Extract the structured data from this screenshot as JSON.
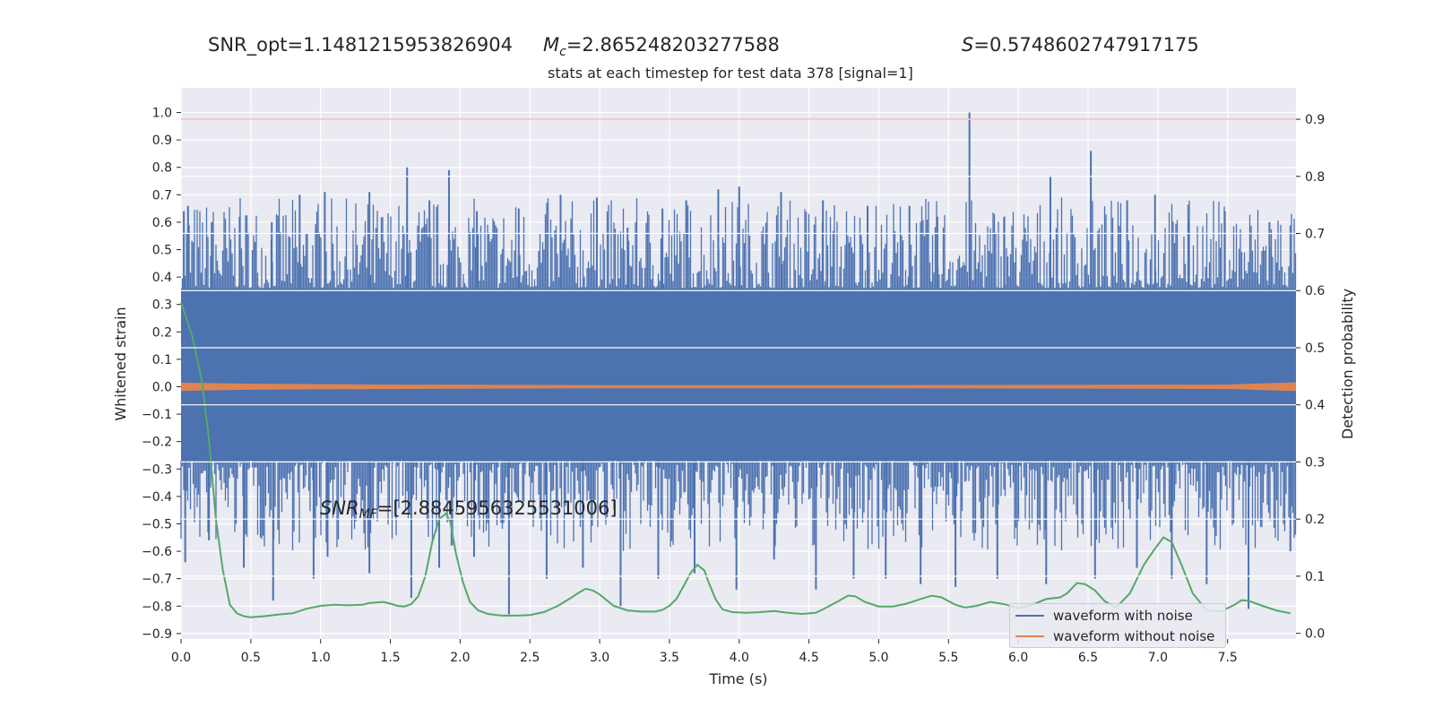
{
  "header": {
    "snr_opt_text": "SNR_opt=1.1481215953826904",
    "mc_value": "=2.865248203277588",
    "s_value": "=0.5748602747917175"
  },
  "chart_data": {
    "type": "line",
    "title": "stats at each timestep for test data 378 [signal=1]",
    "xlabel": "Time (s)",
    "ylabel": "Whitened strain",
    "ylabel_right": "Detection probability",
    "xlim": [
      0.0,
      7.99
    ],
    "ylim": [
      -0.92,
      1.09
    ],
    "ylim_right": [
      -0.01,
      0.955
    ],
    "x_ticks": [
      "0.0",
      "0.5",
      "1.0",
      "1.5",
      "2.0",
      "2.5",
      "3.0",
      "3.5",
      "4.0",
      "4.5",
      "5.0",
      "5.5",
      "6.0",
      "6.5",
      "7.0",
      "7.5"
    ],
    "y_ticks": [
      "1.0",
      "0.9",
      "0.8",
      "0.7",
      "0.6",
      "0.5",
      "0.4",
      "0.3",
      "0.2",
      "0.1",
      "0.0",
      "−0.1",
      "−0.2",
      "−0.3",
      "−0.4",
      "−0.5",
      "−0.6",
      "−0.7",
      "−0.8",
      "−0.9"
    ],
    "y_ticks_right": [
      "0.9",
      "0.8",
      "0.7",
      "0.6",
      "0.5",
      "0.4",
      "0.3",
      "0.2",
      "0.1",
      "0.0"
    ],
    "annotation": "=[2.8845956325531006]",
    "threshold_line": {
      "y": 0.9,
      "axis": "right",
      "color": "#d62728"
    },
    "grid": true,
    "legend_position": "lower-right",
    "series": [
      {
        "name": "waveform with noise",
        "color": "#4c72b0",
        "axis": "left",
        "noise_band": [
          -0.27,
          0.36
        ],
        "max_peaks": [
          {
            "x": 0.02,
            "y": 0.64
          },
          {
            "x": 0.05,
            "y": 0.66
          },
          {
            "x": 0.22,
            "y": 0.6
          },
          {
            "x": 0.42,
            "y": 0.62
          },
          {
            "x": 0.65,
            "y": 0.6
          },
          {
            "x": 0.85,
            "y": 0.7
          },
          {
            "x": 1.03,
            "y": 0.71
          },
          {
            "x": 1.35,
            "y": 0.71
          },
          {
            "x": 1.62,
            "y": 0.8
          },
          {
            "x": 1.78,
            "y": 0.68
          },
          {
            "x": 1.92,
            "y": 0.79
          },
          {
            "x": 2.12,
            "y": 0.64
          },
          {
            "x": 2.42,
            "y": 0.65
          },
          {
            "x": 2.72,
            "y": 0.7
          },
          {
            "x": 2.98,
            "y": 0.69
          },
          {
            "x": 3.2,
            "y": 0.58
          },
          {
            "x": 3.45,
            "y": 0.65
          },
          {
            "x": 3.62,
            "y": 0.68
          },
          {
            "x": 3.85,
            "y": 0.72
          },
          {
            "x": 4.0,
            "y": 0.73
          },
          {
            "x": 4.3,
            "y": 0.71
          },
          {
            "x": 4.6,
            "y": 0.68
          },
          {
            "x": 4.92,
            "y": 0.66
          },
          {
            "x": 5.22,
            "y": 0.66
          },
          {
            "x": 5.42,
            "y": 0.62
          },
          {
            "x": 5.65,
            "y": 1.0
          },
          {
            "x": 5.9,
            "y": 0.62
          },
          {
            "x": 6.23,
            "y": 0.77
          },
          {
            "x": 6.52,
            "y": 0.86
          },
          {
            "x": 6.78,
            "y": 0.68
          },
          {
            "x": 6.98,
            "y": 0.7
          },
          {
            "x": 7.22,
            "y": 0.6
          },
          {
            "x": 7.48,
            "y": 0.64
          },
          {
            "x": 7.8,
            "y": 0.6
          }
        ],
        "min_peaks": [
          {
            "x": 0.03,
            "y": -0.64
          },
          {
            "x": 0.2,
            "y": -0.56
          },
          {
            "x": 0.45,
            "y": -0.66
          },
          {
            "x": 0.66,
            "y": -0.78
          },
          {
            "x": 0.95,
            "y": -0.7
          },
          {
            "x": 1.05,
            "y": -0.62
          },
          {
            "x": 1.35,
            "y": -0.68
          },
          {
            "x": 1.65,
            "y": -0.77
          },
          {
            "x": 1.85,
            "y": -0.66
          },
          {
            "x": 2.1,
            "y": -0.62
          },
          {
            "x": 2.35,
            "y": -0.83
          },
          {
            "x": 2.62,
            "y": -0.7
          },
          {
            "x": 2.88,
            "y": -0.66
          },
          {
            "x": 3.15,
            "y": -0.8
          },
          {
            "x": 3.42,
            "y": -0.7
          },
          {
            "x": 3.68,
            "y": -0.68
          },
          {
            "x": 3.98,
            "y": -0.74
          },
          {
            "x": 4.25,
            "y": -0.63
          },
          {
            "x": 4.55,
            "y": -0.74
          },
          {
            "x": 4.82,
            "y": -0.7
          },
          {
            "x": 5.05,
            "y": -0.7
          },
          {
            "x": 5.3,
            "y": -0.72
          },
          {
            "x": 5.55,
            "y": -0.73
          },
          {
            "x": 5.85,
            "y": -0.7
          },
          {
            "x": 6.2,
            "y": -0.72
          },
          {
            "x": 6.55,
            "y": -0.7
          },
          {
            "x": 6.85,
            "y": -0.66
          },
          {
            "x": 7.1,
            "y": -0.7
          },
          {
            "x": 7.35,
            "y": -0.72
          },
          {
            "x": 7.65,
            "y": -0.81
          },
          {
            "x": 7.95,
            "y": -0.6
          }
        ]
      },
      {
        "name": "waveform without noise",
        "color": "#dd8452",
        "axis": "left",
        "envelope": [
          {
            "x": 0.0,
            "y": 0.015
          },
          {
            "x": 0.5,
            "y": 0.011
          },
          {
            "x": 1.5,
            "y": 0.008
          },
          {
            "x": 3.0,
            "y": 0.006
          },
          {
            "x": 5.0,
            "y": 0.006
          },
          {
            "x": 6.5,
            "y": 0.007
          },
          {
            "x": 7.5,
            "y": 0.008
          },
          {
            "x": 7.8,
            "y": 0.013
          },
          {
            "x": 7.99,
            "y": 0.016
          }
        ]
      },
      {
        "name": "detection probability",
        "color": "#55a868",
        "axis": "right",
        "points": [
          [
            0.0,
            0.58
          ],
          [
            0.08,
            0.52
          ],
          [
            0.15,
            0.44
          ],
          [
            0.2,
            0.34
          ],
          [
            0.25,
            0.2
          ],
          [
            0.3,
            0.11
          ],
          [
            0.35,
            0.05
          ],
          [
            0.4,
            0.035
          ],
          [
            0.45,
            0.03
          ],
          [
            0.5,
            0.028
          ],
          [
            0.6,
            0.03
          ],
          [
            0.7,
            0.033
          ],
          [
            0.8,
            0.035
          ],
          [
            0.9,
            0.043
          ],
          [
            1.0,
            0.048
          ],
          [
            1.1,
            0.05
          ],
          [
            1.2,
            0.049
          ],
          [
            1.3,
            0.05
          ],
          [
            1.35,
            0.053
          ],
          [
            1.45,
            0.055
          ],
          [
            1.5,
            0.052
          ],
          [
            1.55,
            0.048
          ],
          [
            1.6,
            0.047
          ],
          [
            1.65,
            0.051
          ],
          [
            1.7,
            0.065
          ],
          [
            1.75,
            0.1
          ],
          [
            1.8,
            0.16
          ],
          [
            1.85,
            0.2
          ],
          [
            1.9,
            0.21
          ],
          [
            1.93,
            0.195
          ],
          [
            1.97,
            0.14
          ],
          [
            2.02,
            0.09
          ],
          [
            2.07,
            0.055
          ],
          [
            2.13,
            0.04
          ],
          [
            2.2,
            0.034
          ],
          [
            2.3,
            0.031
          ],
          [
            2.4,
            0.031
          ],
          [
            2.5,
            0.032
          ],
          [
            2.6,
            0.037
          ],
          [
            2.7,
            0.048
          ],
          [
            2.8,
            0.063
          ],
          [
            2.85,
            0.071
          ],
          [
            2.9,
            0.078
          ],
          [
            2.95,
            0.075
          ],
          [
            3.0,
            0.068
          ],
          [
            3.05,
            0.058
          ],
          [
            3.1,
            0.048
          ],
          [
            3.2,
            0.04
          ],
          [
            3.3,
            0.038
          ],
          [
            3.4,
            0.038
          ],
          [
            3.45,
            0.041
          ],
          [
            3.5,
            0.048
          ],
          [
            3.55,
            0.06
          ],
          [
            3.6,
            0.082
          ],
          [
            3.65,
            0.105
          ],
          [
            3.7,
            0.12
          ],
          [
            3.75,
            0.11
          ],
          [
            3.78,
            0.09
          ],
          [
            3.83,
            0.06
          ],
          [
            3.88,
            0.042
          ],
          [
            3.95,
            0.037
          ],
          [
            4.05,
            0.036
          ],
          [
            4.15,
            0.037
          ],
          [
            4.25,
            0.039
          ],
          [
            4.35,
            0.036
          ],
          [
            4.45,
            0.034
          ],
          [
            4.55,
            0.036
          ],
          [
            4.6,
            0.042
          ],
          [
            4.7,
            0.055
          ],
          [
            4.78,
            0.066
          ],
          [
            4.83,
            0.065
          ],
          [
            4.9,
            0.055
          ],
          [
            5.0,
            0.047
          ],
          [
            5.1,
            0.047
          ],
          [
            5.2,
            0.052
          ],
          [
            5.3,
            0.06
          ],
          [
            5.38,
            0.066
          ],
          [
            5.45,
            0.063
          ],
          [
            5.55,
            0.05
          ],
          [
            5.62,
            0.045
          ],
          [
            5.7,
            0.048
          ],
          [
            5.8,
            0.055
          ],
          [
            5.9,
            0.051
          ],
          [
            6.0,
            0.044
          ],
          [
            6.1,
            0.05
          ],
          [
            6.2,
            0.06
          ],
          [
            6.3,
            0.063
          ],
          [
            6.35,
            0.07
          ],
          [
            6.42,
            0.088
          ],
          [
            6.48,
            0.086
          ],
          [
            6.55,
            0.075
          ],
          [
            6.62,
            0.056
          ],
          [
            6.7,
            0.045
          ],
          [
            6.8,
            0.07
          ],
          [
            6.9,
            0.12
          ],
          [
            6.97,
            0.145
          ],
          [
            7.04,
            0.168
          ],
          [
            7.1,
            0.16
          ],
          [
            7.17,
            0.12
          ],
          [
            7.25,
            0.07
          ],
          [
            7.35,
            0.04
          ],
          [
            7.45,
            0.038
          ],
          [
            7.55,
            0.05
          ],
          [
            7.6,
            0.058
          ],
          [
            7.65,
            0.057
          ],
          [
            7.75,
            0.048
          ],
          [
            7.85,
            0.04
          ],
          [
            7.95,
            0.035
          ]
        ]
      }
    ]
  }
}
